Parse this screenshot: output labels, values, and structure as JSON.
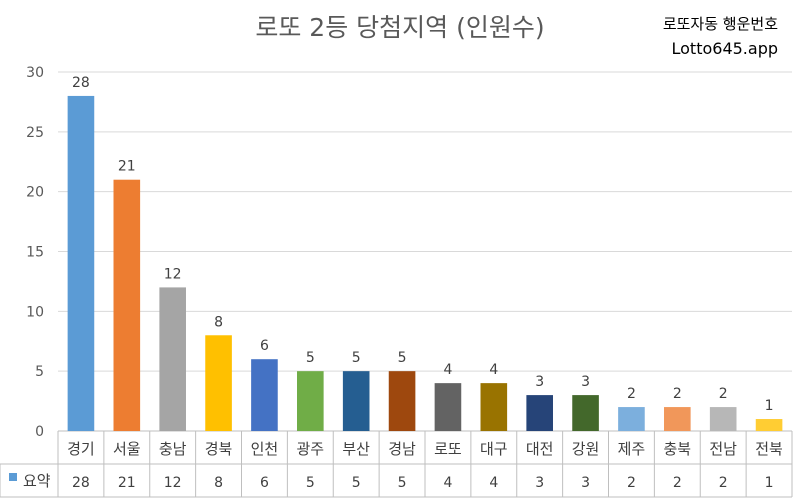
{
  "chart_data": {
    "type": "bar",
    "title": "로또 2등 당첨지역 (인원수)",
    "categories": [
      "경기",
      "서울",
      "충남",
      "경북",
      "인천",
      "광주",
      "부산",
      "경남",
      "로또",
      "대구",
      "대전",
      "강원",
      "제주",
      "충북",
      "전남",
      "전북"
    ],
    "series": [
      {
        "name": "요약",
        "values": [
          28,
          21,
          12,
          8,
          6,
          5,
          5,
          5,
          4,
          4,
          3,
          3,
          2,
          2,
          2,
          1
        ]
      }
    ],
    "colors": [
      "#5b9bd5",
      "#ed7d31",
      "#a5a5a5",
      "#ffc000",
      "#4472c4",
      "#70ad47",
      "#255e91",
      "#9e480e",
      "#636363",
      "#997300",
      "#264478",
      "#43682b",
      "#7cafdd",
      "#f1975a",
      "#b7b7b7",
      "#ffcd33"
    ],
    "legend_color": "#5b9bd5",
    "ylim": [
      0,
      30
    ],
    "yticks": [
      0,
      5,
      10,
      15,
      20,
      25,
      30
    ],
    "grid": true,
    "data_table": true
  },
  "header": {
    "title": "로또 2등 당첨지역 (인원수)",
    "brand_line1": "로또자동 행운번호",
    "brand_line2": "Lotto645.app"
  }
}
